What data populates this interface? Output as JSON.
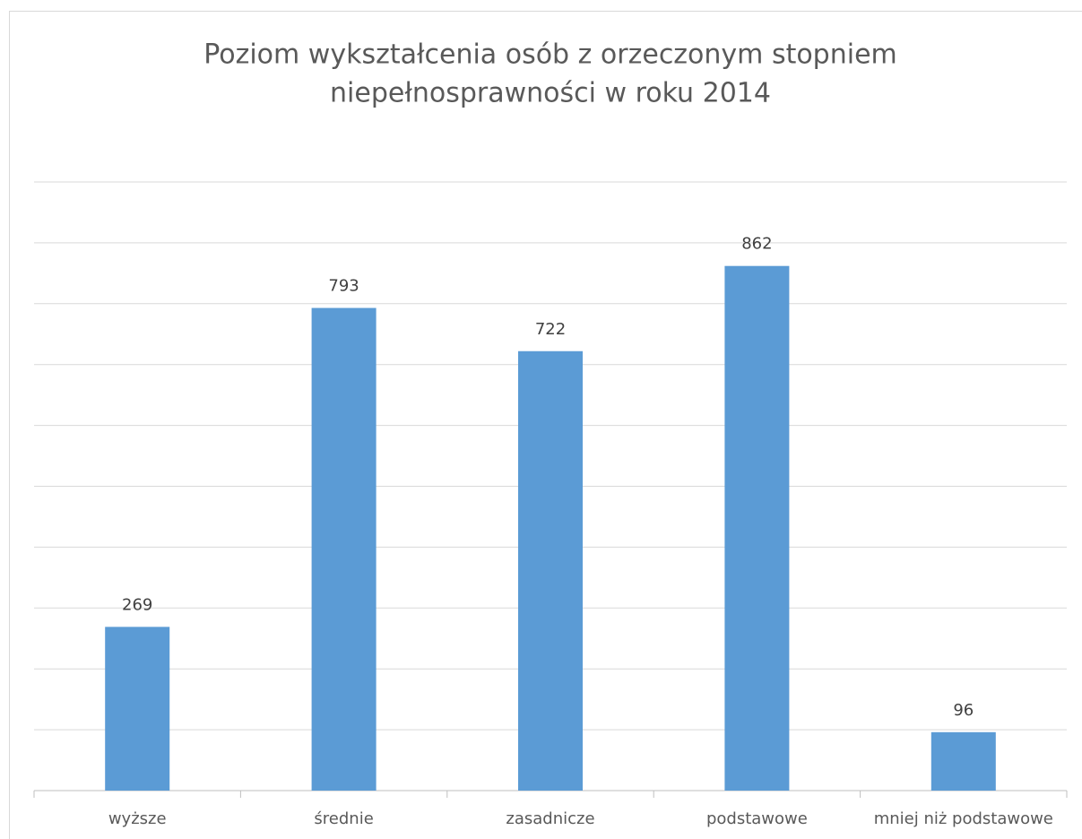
{
  "chart_data": {
    "type": "bar",
    "title": [
      "Poziom wykształcenia osób z orzeczonym stopniem",
      "niepełnosprawności  w roku 2014"
    ],
    "categories": [
      "wyższe",
      "średnie",
      "zasadnicze",
      "podstawowe",
      "mniej niż podstawowe"
    ],
    "values": [
      269,
      793,
      722,
      862,
      96
    ],
    "color": "#5b9bd5",
    "ylim": [
      0,
      1000
    ],
    "yticks": [
      0,
      100,
      200,
      300,
      400,
      500,
      600,
      700,
      800,
      900,
      1000
    ],
    "grid": true
  }
}
